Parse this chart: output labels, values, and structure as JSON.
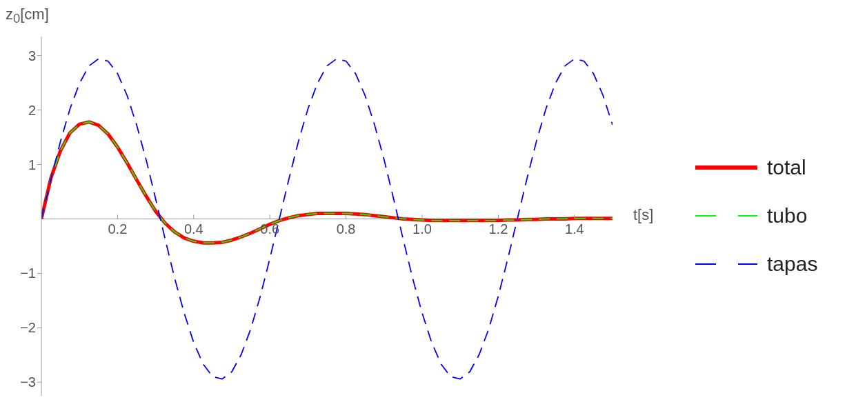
{
  "chart_data": {
    "type": "line",
    "xlabel": "t[s]",
    "ylabel": "z$_{0}$[cm]",
    "x": [
      0,
      0.025,
      0.05,
      0.075,
      0.1,
      0.125,
      0.15,
      0.175,
      0.2,
      0.225,
      0.25,
      0.275,
      0.3,
      0.325,
      0.35,
      0.375,
      0.4,
      0.425,
      0.45,
      0.475,
      0.5,
      0.525,
      0.55,
      0.575,
      0.6,
      0.625,
      0.65,
      0.675,
      0.7,
      0.725,
      0.75,
      0.775,
      0.8,
      0.825,
      0.85,
      0.875,
      0.9,
      0.925,
      0.95,
      0.975,
      1,
      1.025,
      1.05,
      1.075,
      1.1,
      1.125,
      1.15,
      1.175,
      1.2,
      1.225,
      1.25,
      1.275,
      1.3,
      1.325,
      1.35,
      1.375,
      1.4,
      1.425,
      1.45,
      1.475,
      1.5
    ],
    "series": [
      {
        "name": "total",
        "color": "#ff0000",
        "line_style": "solid",
        "values": [
          0,
          0.75,
          1.25,
          1.58,
          1.74,
          1.78,
          1.72,
          1.56,
          1.32,
          1.03,
          0.72,
          0.42,
          0.14,
          -0.08,
          -0.24,
          -0.35,
          -0.41,
          -0.44,
          -0.44,
          -0.43,
          -0.39,
          -0.33,
          -0.26,
          -0.18,
          -0.1,
          -0.03,
          0.02,
          0.06,
          0.08,
          0.1,
          0.1,
          0.1,
          0.1,
          0.09,
          0.08,
          0.06,
          0.04,
          0.02,
          0,
          -0.01,
          -0.02,
          -0.03,
          -0.03,
          -0.03,
          -0.03,
          -0.03,
          -0.03,
          -0.03,
          -0.03,
          -0.02,
          -0.02,
          -0.01,
          -0.01,
          0,
          0,
          0,
          0.01,
          0.01,
          0.01,
          0.01,
          0.01
        ]
      },
      {
        "name": "tubo",
        "color": "#00ff00",
        "line_style": "dashed",
        "values": [
          0,
          0.75,
          1.25,
          1.58,
          1.74,
          1.78,
          1.72,
          1.56,
          1.32,
          1.03,
          0.72,
          0.42,
          0.14,
          -0.08,
          -0.24,
          -0.35,
          -0.41,
          -0.44,
          -0.44,
          -0.43,
          -0.39,
          -0.33,
          -0.26,
          -0.18,
          -0.1,
          -0.03,
          0.02,
          0.06,
          0.08,
          0.1,
          0.1,
          0.1,
          0.1,
          0.09,
          0.08,
          0.06,
          0.04,
          0.02,
          0,
          -0.01,
          -0.02,
          -0.03,
          -0.03,
          -0.03,
          -0.03,
          -0.03,
          -0.03,
          -0.03,
          -0.03,
          -0.02,
          -0.02,
          -0.01,
          -0.01,
          0,
          0,
          0,
          0.01,
          0.01,
          0.01,
          0.01,
          0.01
        ]
      },
      {
        "name": "tapas",
        "color": "#0000ff",
        "line_style": "dashed",
        "values": [
          0,
          0.73,
          1.42,
          2.02,
          2.49,
          2.81,
          2.94,
          2.9,
          2.67,
          2.27,
          1.73,
          1.09,
          0.37,
          -0.37,
          -1.09,
          -1.73,
          -2.27,
          -2.67,
          -2.9,
          -2.94,
          -2.81,
          -2.49,
          -2.02,
          -1.42,
          -0.73,
          0,
          0.73,
          1.42,
          2.02,
          2.49,
          2.81,
          2.94,
          2.9,
          2.67,
          2.27,
          1.73,
          1.09,
          0.37,
          -0.37,
          -1.09,
          -1.73,
          -2.27,
          -2.67,
          -2.9,
          -2.94,
          -2.81,
          -2.49,
          -2.02,
          -1.42,
          -0.73,
          0,
          0.73,
          1.42,
          2.02,
          2.49,
          2.81,
          2.94,
          2.9,
          2.67,
          2.27,
          1.73
        ]
      }
    ],
    "xlim": [
      0,
      1.5
    ],
    "xticks": [
      0.2,
      0.4,
      0.6,
      0.8,
      {
        "value": 1,
        "label": "1.0"
      },
      1.2,
      1.4
    ],
    "ylim": [
      -3.25,
      3.35
    ],
    "yticks": [
      {
        "value": -3,
        "label": "−3"
      },
      {
        "value": -2,
        "label": "−2"
      },
      {
        "value": -1,
        "label": "−1"
      },
      1,
      2,
      3
    ],
    "grid": false,
    "legend": "right",
    "marker": "none"
  }
}
